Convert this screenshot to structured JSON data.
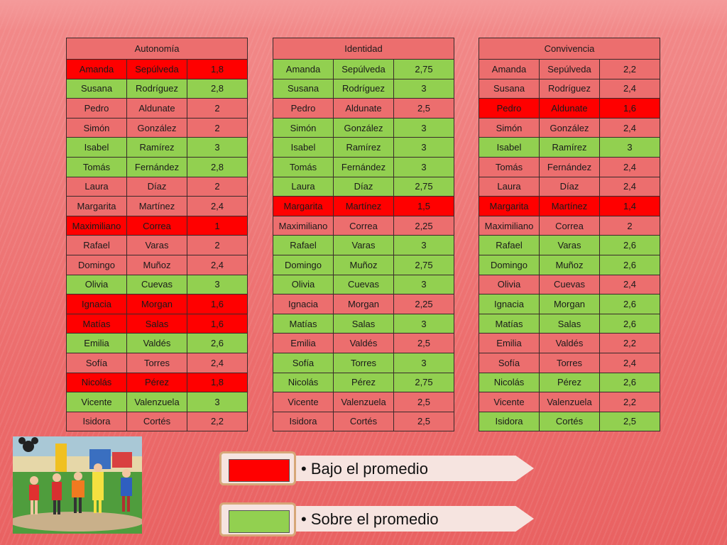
{
  "tables": [
    {
      "title": "Autonomía",
      "rows": [
        {
          "first": "Amanda",
          "last": "Sepúlveda",
          "score": "1,8",
          "status": "low"
        },
        {
          "first": "Susana",
          "last": "Rodríguez",
          "score": "2,8",
          "status": "high"
        },
        {
          "first": "Pedro",
          "last": "Aldunate",
          "score": "2",
          "status": "neutral"
        },
        {
          "first": "Simón",
          "last": "González",
          "score": "2",
          "status": "neutral"
        },
        {
          "first": "Isabel",
          "last": "Ramírez",
          "score": "3",
          "status": "high"
        },
        {
          "first": "Tomás",
          "last": "Fernández",
          "score": "2,8",
          "status": "high"
        },
        {
          "first": "Laura",
          "last": "Díaz",
          "score": "2",
          "status": "neutral"
        },
        {
          "first": "Margarita",
          "last": "Martínez",
          "score": "2,4",
          "status": "neutral"
        },
        {
          "first": "Maximiliano",
          "last": "Correa",
          "score": "1",
          "status": "low"
        },
        {
          "first": "Rafael",
          "last": "Varas",
          "score": "2",
          "status": "neutral"
        },
        {
          "first": "Domingo",
          "last": "Muñoz",
          "score": "2,4",
          "status": "neutral"
        },
        {
          "first": "Olivia",
          "last": "Cuevas",
          "score": "3",
          "status": "high"
        },
        {
          "first": "Ignacia",
          "last": "Morgan",
          "score": "1,6",
          "status": "low"
        },
        {
          "first": "Matías",
          "last": "Salas",
          "score": "1,6",
          "status": "low"
        },
        {
          "first": "Emilia",
          "last": "Valdés",
          "score": "2,6",
          "status": "high"
        },
        {
          "first": "Sofía",
          "last": "Torres",
          "score": "2,4",
          "status": "neutral"
        },
        {
          "first": "Nicolás",
          "last": "Pérez",
          "score": "1,8",
          "status": "low"
        },
        {
          "first": "Vicente",
          "last": "Valenzuela",
          "score": "3",
          "status": "high"
        },
        {
          "first": "Isidora",
          "last": "Cortés",
          "score": "2,2",
          "status": "neutral"
        }
      ]
    },
    {
      "title": "Identidad",
      "rows": [
        {
          "first": "Amanda",
          "last": "Sepúlveda",
          "score": "2,75",
          "status": "high"
        },
        {
          "first": "Susana",
          "last": "Rodríguez",
          "score": "3",
          "status": "high"
        },
        {
          "first": "Pedro",
          "last": "Aldunate",
          "score": "2,5",
          "status": "neutral"
        },
        {
          "first": "Simón",
          "last": "González",
          "score": "3",
          "status": "high"
        },
        {
          "first": "Isabel",
          "last": "Ramírez",
          "score": "3",
          "status": "high"
        },
        {
          "first": "Tomás",
          "last": "Fernández",
          "score": "3",
          "status": "high"
        },
        {
          "first": "Laura",
          "last": "Díaz",
          "score": "2,75",
          "status": "high"
        },
        {
          "first": "Margarita",
          "last": "Martínez",
          "score": "1,5",
          "status": "low"
        },
        {
          "first": "Maximiliano",
          "last": "Correa",
          "score": "2,25",
          "status": "neutral"
        },
        {
          "first": "Rafael",
          "last": "Varas",
          "score": "3",
          "status": "high"
        },
        {
          "first": "Domingo",
          "last": "Muñoz",
          "score": "2,75",
          "status": "high"
        },
        {
          "first": "Olivia",
          "last": "Cuevas",
          "score": "3",
          "status": "high"
        },
        {
          "first": "Ignacia",
          "last": "Morgan",
          "score": "2,25",
          "status": "neutral"
        },
        {
          "first": "Matías",
          "last": "Salas",
          "score": "3",
          "status": "high"
        },
        {
          "first": "Emilia",
          "last": "Valdés",
          "score": "2,5",
          "status": "neutral"
        },
        {
          "first": "Sofía",
          "last": "Torres",
          "score": "3",
          "status": "high"
        },
        {
          "first": "Nicolás",
          "last": "Pérez",
          "score": "2,75",
          "status": "high"
        },
        {
          "first": "Vicente",
          "last": "Valenzuela",
          "score": "2,5",
          "status": "neutral"
        },
        {
          "first": "Isidora",
          "last": "Cortés",
          "score": "2,5",
          "status": "neutral"
        }
      ]
    },
    {
      "title": "Convivencia",
      "rows": [
        {
          "first": "Amanda",
          "last": "Sepúlveda",
          "score": "2,2",
          "status": "neutral"
        },
        {
          "first": "Susana",
          "last": "Rodríguez",
          "score": "2,4",
          "status": "neutral"
        },
        {
          "first": "Pedro",
          "last": "Aldunate",
          "score": "1,6",
          "status": "low"
        },
        {
          "first": "Simón",
          "last": "González",
          "score": "2,4",
          "status": "neutral"
        },
        {
          "first": "Isabel",
          "last": "Ramírez",
          "score": "3",
          "status": "high"
        },
        {
          "first": "Tomás",
          "last": "Fernández",
          "score": "2,4",
          "status": "neutral"
        },
        {
          "first": "Laura",
          "last": "Díaz",
          "score": "2,4",
          "status": "neutral"
        },
        {
          "first": "Margarita",
          "last": "Martínez",
          "score": "1,4",
          "status": "low"
        },
        {
          "first": "Maximiliano",
          "last": "Correa",
          "score": "2",
          "status": "neutral"
        },
        {
          "first": "Rafael",
          "last": "Varas",
          "score": "2,6",
          "status": "high"
        },
        {
          "first": "Domingo",
          "last": "Muñoz",
          "score": "2,6",
          "status": "high"
        },
        {
          "first": "Olivia",
          "last": "Cuevas",
          "score": "2,4",
          "status": "neutral"
        },
        {
          "first": "Ignacia",
          "last": "Morgan",
          "score": "2,6",
          "status": "high"
        },
        {
          "first": "Matías",
          "last": "Salas",
          "score": "2,6",
          "status": "high"
        },
        {
          "first": "Emilia",
          "last": "Valdés",
          "score": "2,2",
          "status": "neutral"
        },
        {
          "first": "Sofía",
          "last": "Torres",
          "score": "2,4",
          "status": "neutral"
        },
        {
          "first": "Nicolás",
          "last": "Pérez",
          "score": "2,6",
          "status": "high"
        },
        {
          "first": "Vicente",
          "last": "Valenzuela",
          "score": "2,2",
          "status": "neutral"
        },
        {
          "first": "Isidora",
          "last": "Cortés",
          "score": "2,5",
          "status": "high"
        }
      ]
    }
  ],
  "colors": {
    "low": "#ff0000",
    "high": "#92d050",
    "neutral": "#ec6e6e"
  },
  "legend": [
    {
      "label": "Bajo el promedio",
      "color": "#ff0000"
    },
    {
      "label": "Sobre el promedio",
      "color": "#92d050"
    }
  ],
  "bullet": "•"
}
